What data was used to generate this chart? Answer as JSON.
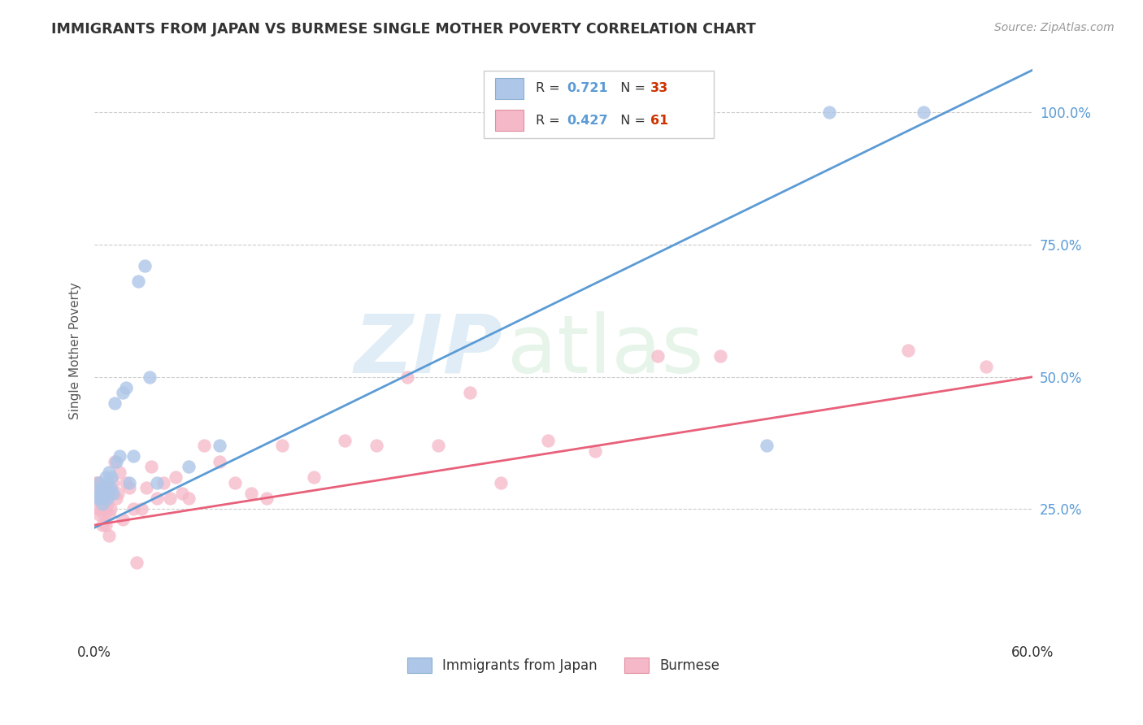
{
  "title": "IMMIGRANTS FROM JAPAN VS BURMESE SINGLE MOTHER POVERTY CORRELATION CHART",
  "source": "Source: ZipAtlas.com",
  "ylabel": "Single Mother Poverty",
  "ytick_vals": [
    0.25,
    0.5,
    0.75,
    1.0
  ],
  "ytick_labels": [
    "25.0%",
    "50.0%",
    "75.0%",
    "100.0%"
  ],
  "legend_japan_R": "0.721",
  "legend_japan_N": "33",
  "legend_burmese_R": "0.427",
  "legend_burmese_N": "61",
  "legend_label_japan": "Immigrants from Japan",
  "legend_label_burmese": "Burmese",
  "color_japan_fill": "#aec6e8",
  "color_burmese_fill": "#f5b8c8",
  "color_japan_line": "#5b9bd5",
  "color_burmese_line": "#e8607a",
  "japan_line_x0": 0.0,
  "japan_line_y0": 0.215,
  "japan_line_x1": 0.6,
  "japan_line_y1": 1.08,
  "burmese_line_x0": 0.0,
  "burmese_line_y0": 0.22,
  "burmese_line_x1": 0.6,
  "burmese_line_y1": 0.5,
  "japan_x": [
    0.002,
    0.003,
    0.003,
    0.004,
    0.004,
    0.005,
    0.005,
    0.006,
    0.007,
    0.007,
    0.008,
    0.008,
    0.009,
    0.009,
    0.01,
    0.011,
    0.012,
    0.013,
    0.014,
    0.016,
    0.018,
    0.02,
    0.022,
    0.025,
    0.028,
    0.032,
    0.035,
    0.04,
    0.06,
    0.08,
    0.43,
    0.47,
    0.53
  ],
  "japan_y": [
    0.27,
    0.28,
    0.3,
    0.27,
    0.29,
    0.26,
    0.285,
    0.27,
    0.285,
    0.31,
    0.27,
    0.3,
    0.28,
    0.32,
    0.29,
    0.31,
    0.28,
    0.45,
    0.34,
    0.35,
    0.47,
    0.48,
    0.3,
    0.35,
    0.68,
    0.71,
    0.5,
    0.3,
    0.33,
    0.37,
    0.37,
    1.0,
    1.0
  ],
  "burmese_x": [
    0.001,
    0.001,
    0.002,
    0.002,
    0.002,
    0.003,
    0.003,
    0.003,
    0.004,
    0.004,
    0.005,
    0.005,
    0.005,
    0.006,
    0.006,
    0.007,
    0.007,
    0.008,
    0.008,
    0.009,
    0.009,
    0.01,
    0.011,
    0.012,
    0.013,
    0.014,
    0.015,
    0.016,
    0.018,
    0.02,
    0.022,
    0.025,
    0.027,
    0.03,
    0.033,
    0.036,
    0.04,
    0.044,
    0.048,
    0.052,
    0.056,
    0.06,
    0.07,
    0.08,
    0.09,
    0.1,
    0.11,
    0.12,
    0.14,
    0.16,
    0.18,
    0.2,
    0.22,
    0.24,
    0.26,
    0.29,
    0.32,
    0.36,
    0.4,
    0.52,
    0.57
  ],
  "burmese_y": [
    0.27,
    0.3,
    0.25,
    0.28,
    0.3,
    0.24,
    0.27,
    0.3,
    0.25,
    0.29,
    0.22,
    0.26,
    0.28,
    0.24,
    0.27,
    0.22,
    0.25,
    0.26,
    0.29,
    0.2,
    0.24,
    0.25,
    0.28,
    0.3,
    0.34,
    0.27,
    0.28,
    0.32,
    0.23,
    0.3,
    0.29,
    0.25,
    0.15,
    0.25,
    0.29,
    0.33,
    0.27,
    0.3,
    0.27,
    0.31,
    0.28,
    0.27,
    0.37,
    0.34,
    0.3,
    0.28,
    0.27,
    0.37,
    0.31,
    0.38,
    0.37,
    0.5,
    0.37,
    0.47,
    0.3,
    0.38,
    0.36,
    0.54,
    0.54,
    0.55,
    0.52
  ],
  "xlim": [
    0.0,
    0.6
  ],
  "ylim": [
    0.0,
    1.1
  ],
  "watermark_zip": "ZIP",
  "watermark_atlas": "atlas",
  "background_color": "#ffffff",
  "grid_color": "#cccccc",
  "ytick_color": "#5b9bd5",
  "title_color": "#333333",
  "source_color": "#999999"
}
